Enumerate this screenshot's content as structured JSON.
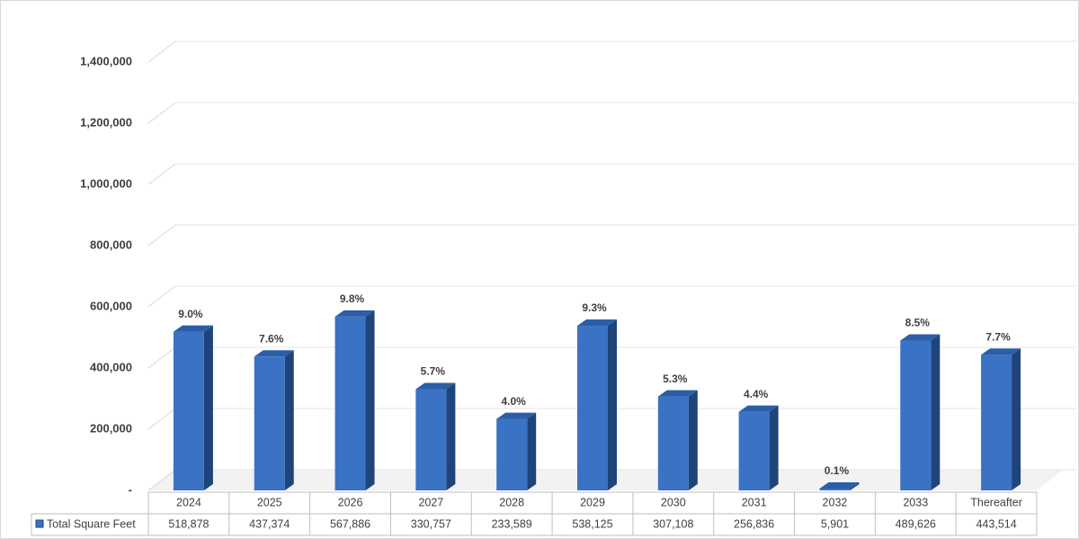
{
  "chart_data": {
    "type": "bar3d",
    "categories": [
      "2024",
      "2025",
      "2026",
      "2027",
      "2028",
      "2029",
      "2030",
      "2031",
      "2032",
      "2033",
      "Thereafter"
    ],
    "series": [
      {
        "name": "Total Square Feet",
        "color": "#3a72c4",
        "values": [
          518878,
          437374,
          567886,
          330757,
          233589,
          538125,
          307108,
          256836,
          5901,
          489626,
          443514
        ],
        "value_labels": [
          "518,878",
          "437,374",
          "567,886",
          "330,757",
          "233,589",
          "538,125",
          "307,108",
          "256,836",
          "5,901",
          "489,626",
          "443,514"
        ],
        "percent_labels": [
          "9.0%",
          "7.6%",
          "9.8%",
          "5.7%",
          "4.0%",
          "9.3%",
          "5.3%",
          "4.4%",
          "0.1%",
          "8.5%",
          "7.7%"
        ]
      }
    ],
    "ylim": [
      0,
      1400000
    ],
    "yticks": [
      {
        "value": 0,
        "label": "-"
      },
      {
        "value": 200000,
        "label": "200,000"
      },
      {
        "value": 400000,
        "label": "400,000"
      },
      {
        "value": 600000,
        "label": "600,000"
      },
      {
        "value": 800000,
        "label": "800,000"
      },
      {
        "value": 1000000,
        "label": "1,000,000"
      },
      {
        "value": 1200000,
        "label": "1,200,000"
      },
      {
        "value": 1400000,
        "label": "1,400,000"
      }
    ],
    "grid": true,
    "data_table": true
  }
}
